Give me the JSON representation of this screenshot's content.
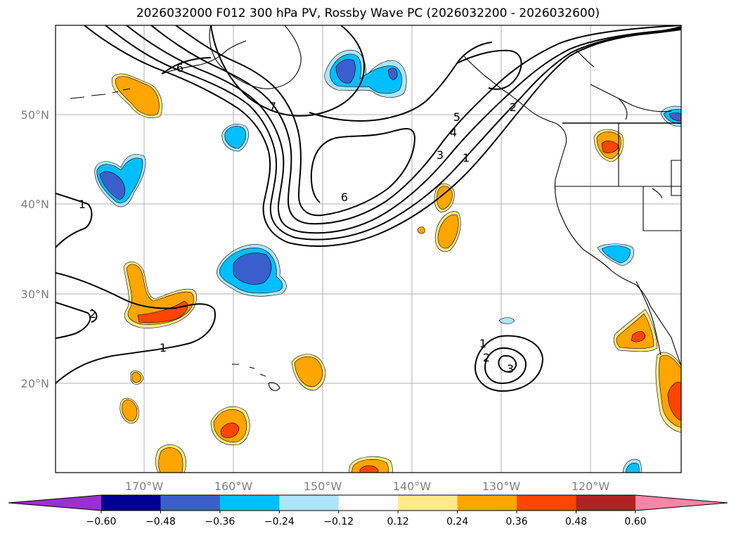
{
  "title": "2026032000 F012 300 hPa PV, Rossby Wave PC (2026032200 - 2026032600)",
  "lat_labels": [
    "50°N",
    "40°N",
    "30°N",
    "20°N"
  ],
  "lon_labels": [
    "170°W",
    "160°W",
    "150°W",
    "140°W",
    "130°W",
    "120°W"
  ],
  "contour_labels": [
    "6",
    "7",
    "6",
    "5",
    "4",
    "3",
    "1",
    "2",
    "1",
    "1",
    "1",
    "2",
    "3",
    "2"
  ],
  "colorbar": {
    "ticks": [
      "−0.60",
      "−0.48",
      "−0.36",
      "−0.24",
      "−0.12",
      "0.12",
      "0.24",
      "0.36",
      "0.48",
      "0.60"
    ],
    "colors": [
      "#9b30d0",
      "#000090",
      "#3a5fcd",
      "#00bfff",
      "#aee4fa",
      "#ffffff",
      "#ffe98a",
      "#ffa500",
      "#ff4500",
      "#b22222",
      "#ff85a8"
    ]
  }
}
